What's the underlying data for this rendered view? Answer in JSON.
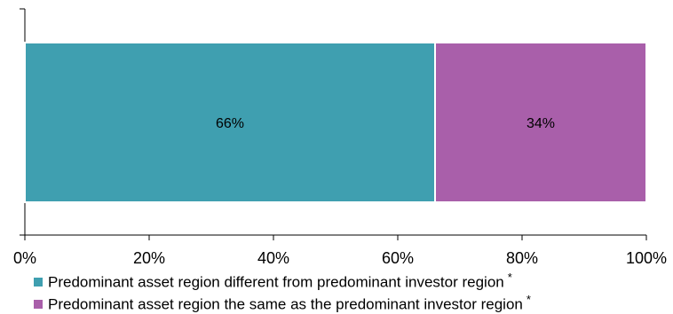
{
  "chart_data": {
    "type": "bar",
    "orientation": "horizontal",
    "stacked": true,
    "categories": [
      ""
    ],
    "series": [
      {
        "name": "Predominant asset region different from predominant investor region",
        "values": [
          66
        ],
        "label": "66%",
        "marker": "*",
        "color": "#3f9fb0"
      },
      {
        "name": "Predominant asset region the same as the predominant investor region",
        "values": [
          34
        ],
        "label": "34%",
        "marker": "*",
        "color": "#a95faa"
      }
    ],
    "xlim": [
      0,
      100
    ],
    "xticks": [
      "0%",
      "20%",
      "40%",
      "60%",
      "80%",
      "100%"
    ],
    "grid": false,
    "legend_position": "bottom"
  }
}
